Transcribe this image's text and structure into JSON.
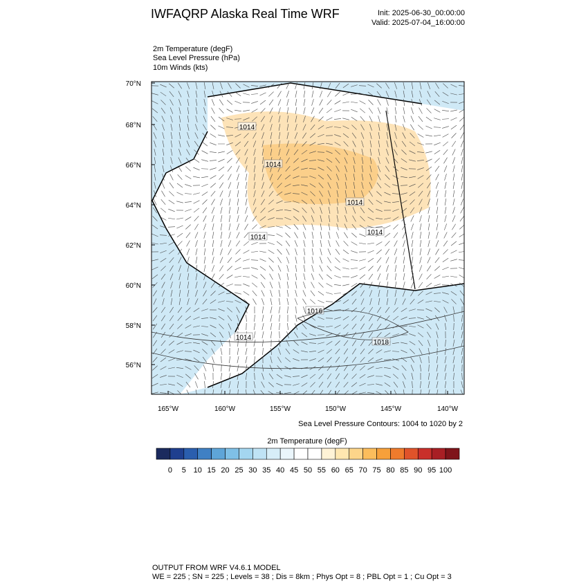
{
  "header": {
    "title": "IWFAQRP Alaska Real Time WRF",
    "init": "Init: 2025-06-30_00:00:00",
    "valid": "Valid: 2025-07-04_16:00:00"
  },
  "fields": [
    "2m Temperature   (degF)",
    "Sea Level Pressure   (hPa)",
    "10m Winds   (kts)"
  ],
  "map": {
    "lat_labels": [
      "70°N",
      "68°N",
      "66°N",
      "64°N",
      "62°N",
      "60°N",
      "58°N",
      "56°N"
    ],
    "lon_labels": [
      "165°W",
      "160°W",
      "155°W",
      "150°W",
      "145°W",
      "140°W"
    ],
    "contour_labels": [
      "1014",
      "1014",
      "1014",
      "1014",
      "1014",
      "1014",
      "1016",
      "1018"
    ],
    "contour_note": "Sea Level Pressure Contours: 1004 to 1020 by 2"
  },
  "colorbar": {
    "title": "2m Temperature  (degF)",
    "labels": [
      0,
      5,
      10,
      15,
      20,
      25,
      30,
      35,
      40,
      45,
      50,
      55,
      60,
      65,
      70,
      75,
      80,
      85,
      90,
      95,
      100
    ],
    "colors": [
      "#1b2a5e",
      "#1f3f8f",
      "#2a5eae",
      "#3f80c4",
      "#5ea5d8",
      "#7fc0e6",
      "#a4d6f0",
      "#bfe3f5",
      "#d7eef8",
      "#ebf6fb",
      "#ffffff",
      "#ffffff",
      "#fff3d6",
      "#ffe7b0",
      "#fdd58a",
      "#fbbd5c",
      "#f7a03a",
      "#ef7b2c",
      "#e0532a",
      "#c92f2a",
      "#a81f24",
      "#7f141a"
    ]
  },
  "footer": [
    "OUTPUT FROM WRF V4.6.1 MODEL",
    "WE = 225 ; SN = 225 ; Levels = 38 ; Dis = 8km ; Phys Opt = 8 ; PBL Opt = 1 ; Cu Opt = 3"
  ]
}
